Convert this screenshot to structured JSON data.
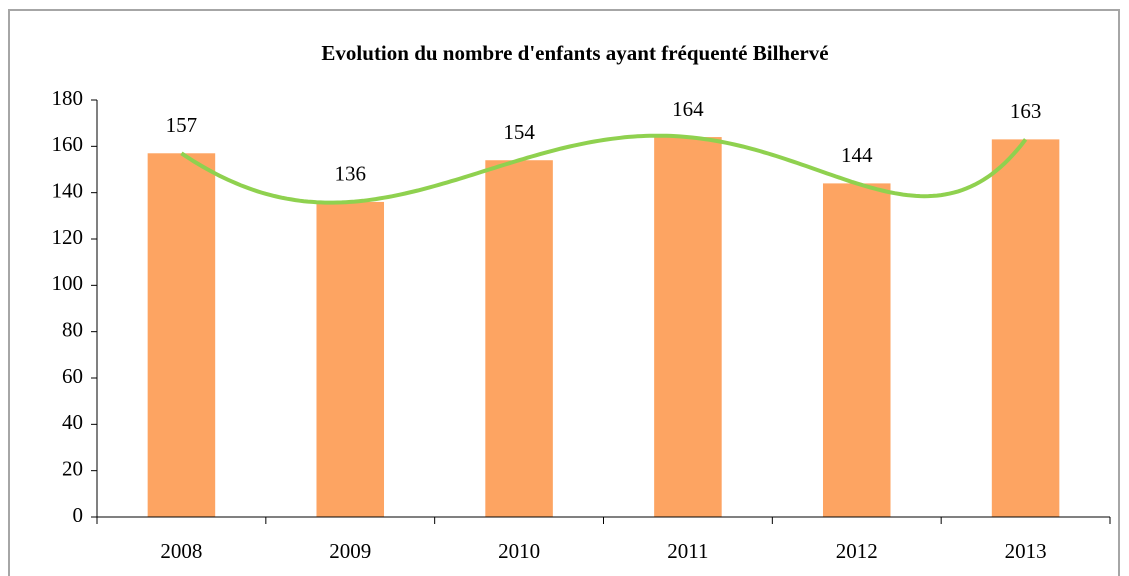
{
  "chart_data": {
    "type": "bar",
    "title": "Evolution du nombre d'enfants ayant fréquenté Bilhervé",
    "categories": [
      "2008",
      "2009",
      "2010",
      "2011",
      "2012",
      "2013"
    ],
    "values": [
      157,
      136,
      154,
      164,
      144,
      163
    ],
    "color": "#fda462",
    "ylim": [
      0,
      180
    ],
    "yticks": [
      0,
      20,
      40,
      60,
      80,
      100,
      120,
      140,
      160,
      180
    ],
    "grid": false,
    "data_labels": true,
    "trendline": {
      "type": "polynomial",
      "order": 5,
      "color": "#8fd14f"
    }
  }
}
